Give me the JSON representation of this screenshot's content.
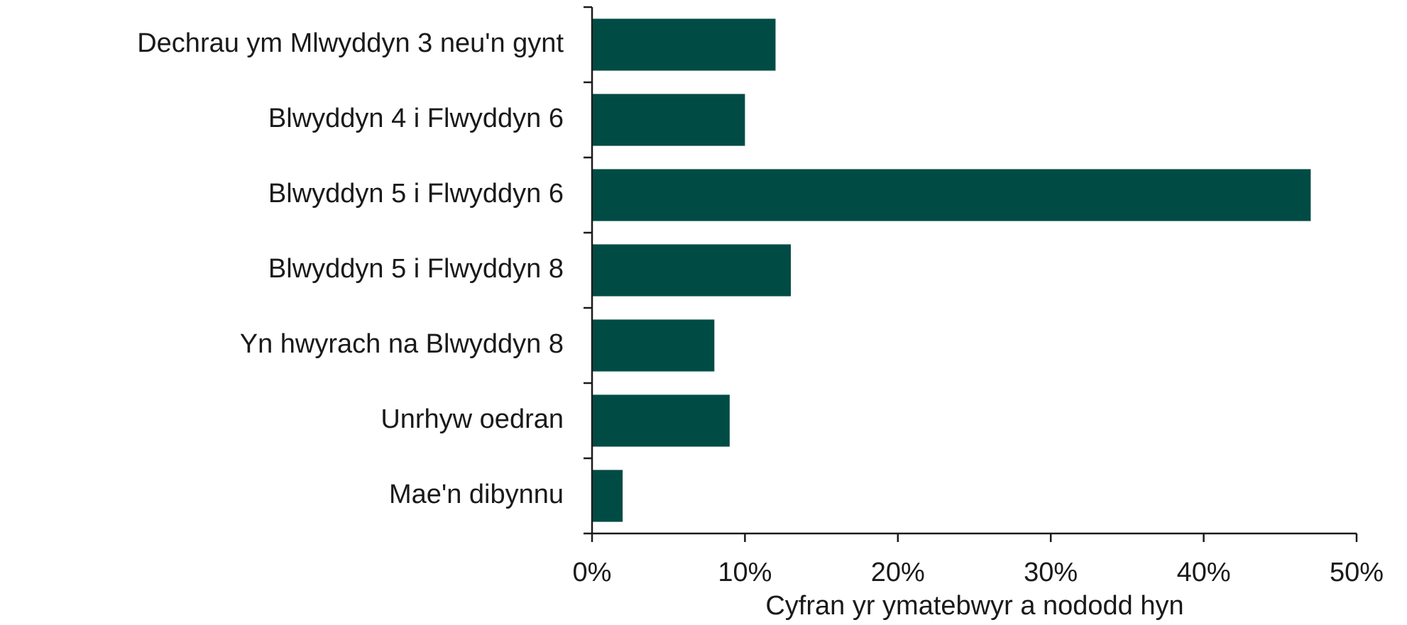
{
  "chart_data": {
    "type": "barh",
    "categories": [
      "Dechrau ym Mlwyddyn 3 neu'n gynt",
      "Blwyddyn 4 i Flwyddyn 6",
      "Blwyddyn 5 i Flwyddyn 6",
      "Blwyddyn 5 i Flwyddyn 8",
      "Yn hwyrach na Blwyddyn 8",
      "Unrhyw oedran",
      "Mae'n dibynnu"
    ],
    "values": [
      12,
      10,
      47,
      13,
      8,
      9,
      2
    ],
    "color": "#004c44",
    "xlim": [
      0,
      50
    ],
    "xticks": [
      {
        "value": 0,
        "label": "0%"
      },
      {
        "value": 10,
        "label": "10%"
      },
      {
        "value": 20,
        "label": "20%"
      },
      {
        "value": 30,
        "label": "30%"
      },
      {
        "value": 40,
        "label": "40%"
      },
      {
        "value": 50,
        "label": "50%"
      }
    ],
    "xlabel": "Cyfran yr ymatebwyr a nododd hyn"
  }
}
